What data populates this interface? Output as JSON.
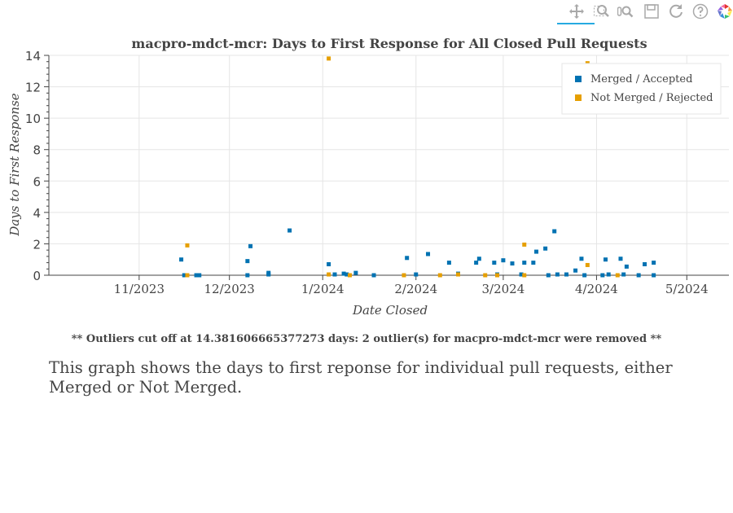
{
  "toolbar": {
    "tools": [
      {
        "name": "pan-icon",
        "title": "Pan"
      },
      {
        "name": "box-zoom-icon",
        "title": "Box Zoom"
      },
      {
        "name": "wheel-zoom-icon",
        "title": "Wheel Zoom"
      },
      {
        "name": "save-icon",
        "title": "Save"
      },
      {
        "name": "reset-icon",
        "title": "Reset"
      },
      {
        "name": "help-icon",
        "title": "Help"
      },
      {
        "name": "bokeh-logo-icon",
        "title": "Bokeh"
      }
    ]
  },
  "chart_data": {
    "type": "scatter",
    "title": "macpro-mdct-mcr: Days to First Response for All Closed Pull Requests",
    "xlabel": "Date Closed",
    "ylabel": "Days to First Response",
    "xlim": [
      "2023-10-02",
      "2024-05-15"
    ],
    "ylim": [
      0,
      14
    ],
    "x_ticks": [
      {
        "date": "2023-11-01",
        "label": "11/2023"
      },
      {
        "date": "2023-12-01",
        "label": "12/2023"
      },
      {
        "date": "2024-01-01",
        "label": "1/2024"
      },
      {
        "date": "2024-02-01",
        "label": "2/2024"
      },
      {
        "date": "2024-03-01",
        "label": "3/2024"
      },
      {
        "date": "2024-04-01",
        "label": "4/2024"
      },
      {
        "date": "2024-05-01",
        "label": "5/2024"
      }
    ],
    "y_ticks": [
      0,
      2,
      4,
      6,
      8,
      10,
      12,
      14
    ],
    "grid": true,
    "legend_position": "top-right",
    "colors": {
      "merged": "#0072b2",
      "not_merged": "#e69f00"
    },
    "series": [
      {
        "name": "Merged / Accepted",
        "points": [
          {
            "x": "2023-11-15",
            "y": 1.0
          },
          {
            "x": "2023-11-16",
            "y": 0.0
          },
          {
            "x": "2023-11-20",
            "y": 0.0
          },
          {
            "x": "2023-11-21",
            "y": 0.0
          },
          {
            "x": "2023-12-07",
            "y": 0.9
          },
          {
            "x": "2023-12-07",
            "y": 0.0
          },
          {
            "x": "2023-12-08",
            "y": 1.85
          },
          {
            "x": "2023-12-14",
            "y": 0.15
          },
          {
            "x": "2023-12-14",
            "y": 0.05
          },
          {
            "x": "2023-12-21",
            "y": 2.85
          },
          {
            "x": "2024-01-03",
            "y": 0.7
          },
          {
            "x": "2024-01-05",
            "y": 0.05
          },
          {
            "x": "2024-01-08",
            "y": 0.1
          },
          {
            "x": "2024-01-09",
            "y": 0.05
          },
          {
            "x": "2024-01-12",
            "y": 0.15
          },
          {
            "x": "2024-01-18",
            "y": 0.0
          },
          {
            "x": "2024-01-29",
            "y": 1.1
          },
          {
            "x": "2024-02-01",
            "y": 0.05
          },
          {
            "x": "2024-02-05",
            "y": 1.35
          },
          {
            "x": "2024-02-12",
            "y": 0.8
          },
          {
            "x": "2024-02-15",
            "y": 0.1
          },
          {
            "x": "2024-02-21",
            "y": 0.8
          },
          {
            "x": "2024-02-22",
            "y": 1.05
          },
          {
            "x": "2024-02-27",
            "y": 0.8
          },
          {
            "x": "2024-02-28",
            "y": 0.05
          },
          {
            "x": "2024-03-01",
            "y": 0.95
          },
          {
            "x": "2024-03-04",
            "y": 0.75
          },
          {
            "x": "2024-03-07",
            "y": 0.05
          },
          {
            "x": "2024-03-08",
            "y": 0.8
          },
          {
            "x": "2024-03-11",
            "y": 0.8
          },
          {
            "x": "2024-03-12",
            "y": 1.5
          },
          {
            "x": "2024-03-15",
            "y": 1.7
          },
          {
            "x": "2024-03-16",
            "y": 0.0
          },
          {
            "x": "2024-03-18",
            "y": 2.8
          },
          {
            "x": "2024-03-19",
            "y": 0.05
          },
          {
            "x": "2024-03-22",
            "y": 0.05
          },
          {
            "x": "2024-03-25",
            "y": 0.3
          },
          {
            "x": "2024-03-27",
            "y": 1.05
          },
          {
            "x": "2024-03-28",
            "y": 0.0
          },
          {
            "x": "2024-04-03",
            "y": 0.0
          },
          {
            "x": "2024-04-04",
            "y": 1.0
          },
          {
            "x": "2024-04-05",
            "y": 0.05
          },
          {
            "x": "2024-04-09",
            "y": 1.05
          },
          {
            "x": "2024-04-10",
            "y": 0.05
          },
          {
            "x": "2024-04-11",
            "y": 0.55
          },
          {
            "x": "2024-04-15",
            "y": 0.0
          },
          {
            "x": "2024-04-17",
            "y": 0.7
          },
          {
            "x": "2024-04-20",
            "y": 0.8
          },
          {
            "x": "2024-04-20",
            "y": 0.0
          }
        ]
      },
      {
        "name": "Not Merged / Rejected",
        "points": [
          {
            "x": "2023-11-17",
            "y": 1.9
          },
          {
            "x": "2023-11-17",
            "y": 0.0
          },
          {
            "x": "2024-01-03",
            "y": 13.8
          },
          {
            "x": "2024-01-03",
            "y": 0.05
          },
          {
            "x": "2024-01-10",
            "y": 0.0
          },
          {
            "x": "2024-01-28",
            "y": 0.0
          },
          {
            "x": "2024-02-09",
            "y": 0.0
          },
          {
            "x": "2024-02-15",
            "y": 0.05
          },
          {
            "x": "2024-02-24",
            "y": 0.0
          },
          {
            "x": "2024-02-28",
            "y": 0.0
          },
          {
            "x": "2024-03-08",
            "y": 1.95
          },
          {
            "x": "2024-03-08",
            "y": 0.0
          },
          {
            "x": "2024-03-29",
            "y": 13.5
          },
          {
            "x": "2024-03-29",
            "y": 0.65
          },
          {
            "x": "2024-04-08",
            "y": 0.0
          }
        ]
      }
    ]
  },
  "footnote": "** Outliers cut off at 14.381606665377273 days: 2 outlier(s) for macpro-mdct-mcr were removed **",
  "caption": "This graph shows the days to first reponse for individual pull requests, either Merged or Not Merged."
}
